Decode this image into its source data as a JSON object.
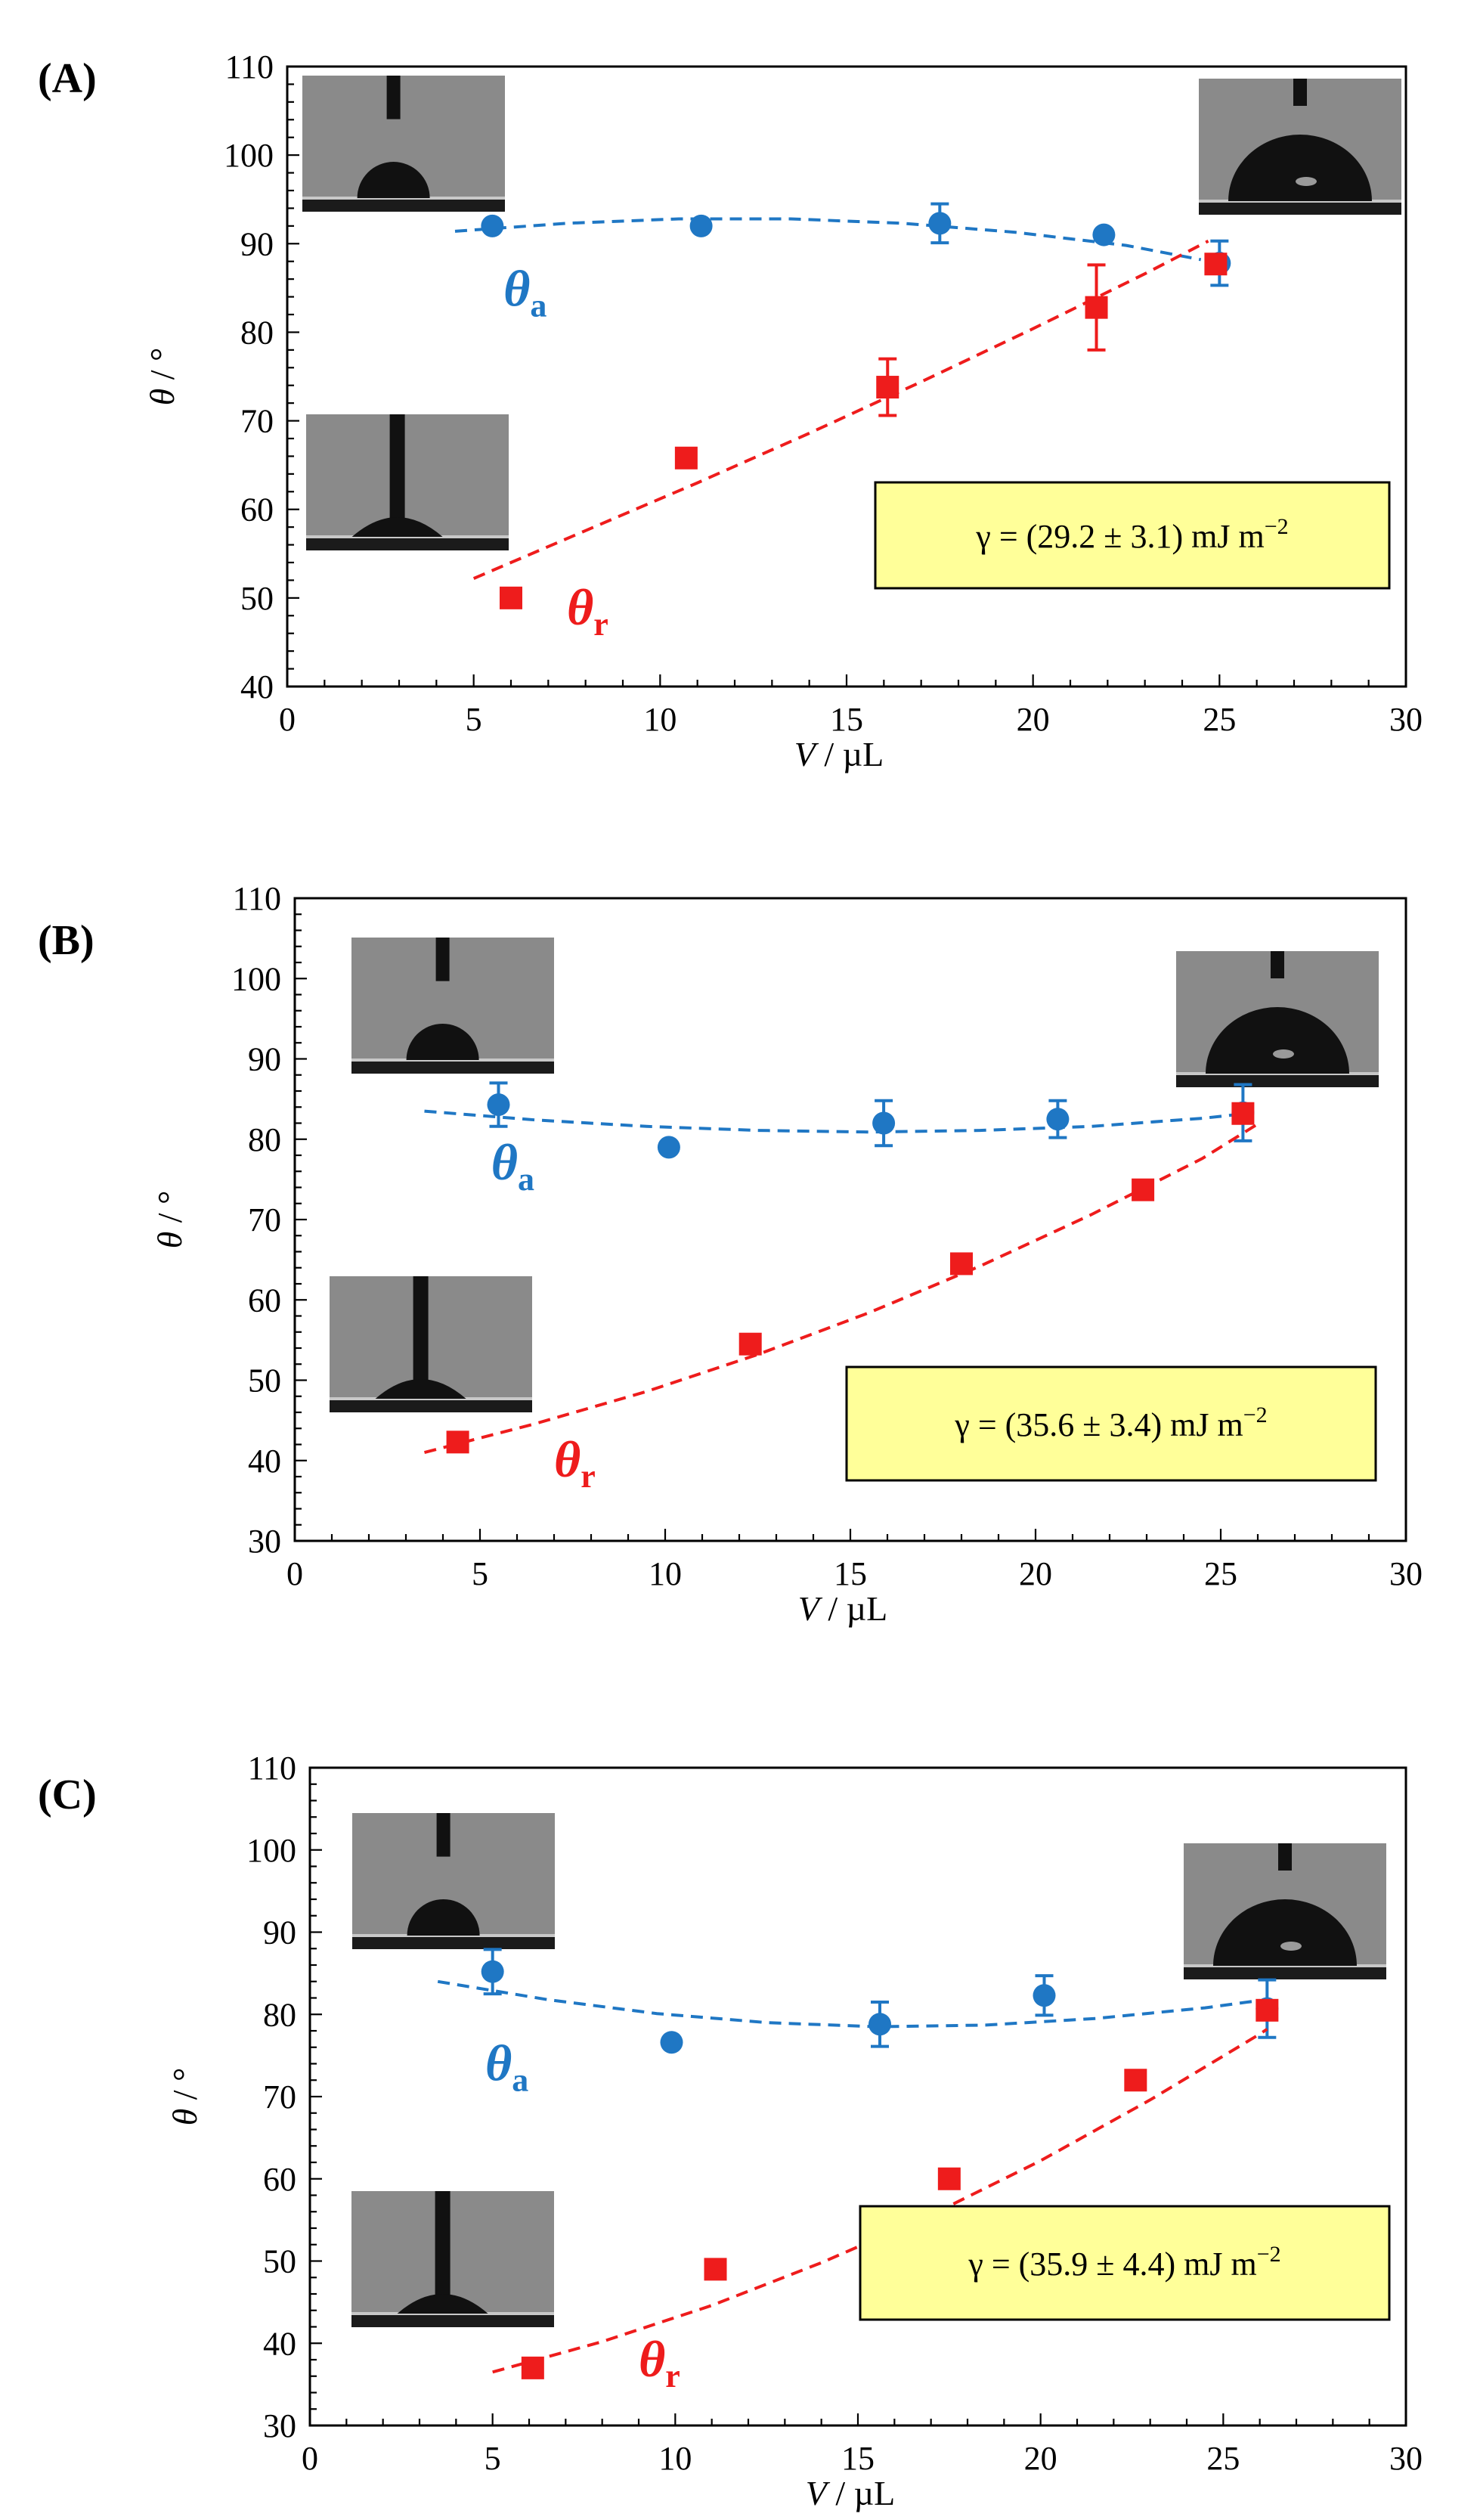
{
  "figure": {
    "colors": {
      "advancing": "#1f77c4",
      "receding": "#ee1c1c",
      "frame": "#000000",
      "annotation_fill": "#ffff99",
      "inset_gray": "#8a8a8a",
      "inset_dark": "#111111"
    }
  },
  "chart_data": [
    {
      "type": "scatter",
      "panel_label": "(A)",
      "xlabel_var": "V",
      "xlabel_unit": " / µL",
      "ylabel_var": "θ",
      "ylabel_unit": " / °",
      "xlim": [
        0,
        30
      ],
      "ylim": [
        40,
        110
      ],
      "xticks": [
        0,
        5,
        10,
        15,
        20,
        25,
        30
      ],
      "yticks": [
        40,
        50,
        60,
        70,
        80,
        90,
        100,
        110
      ],
      "annotation": {
        "prefix": "γ = (29.2 ± 3.1) mJ m",
        "sup": "−2"
      },
      "series": [
        {
          "name": "θa",
          "label_main": "θ",
          "label_sub": "a",
          "color": "advancing",
          "marker": "circle",
          "x": [
            5.5,
            11.1,
            17.5,
            21.9,
            25.0
          ],
          "y": [
            92,
            92,
            92.3,
            91,
            87.8
          ],
          "err": [
            0,
            0,
            2.2,
            0,
            2.5
          ],
          "fit": [
            [
              4.5,
              91.4
            ],
            [
              7.5,
              92.3
            ],
            [
              10.5,
              92.8
            ],
            [
              13.5,
              92.8
            ],
            [
              16.5,
              92.3
            ],
            [
              19.5,
              91.3
            ],
            [
              22.5,
              89.8
            ],
            [
              24.5,
              88.2
            ]
          ],
          "label_at": [
            5.8,
            83
          ]
        },
        {
          "name": "θr",
          "label_main": "θ",
          "label_sub": "r",
          "color": "receding",
          "marker": "square",
          "x": [
            6.0,
            10.7,
            16.1,
            21.7,
            24.9
          ],
          "y": [
            50,
            65.8,
            73.8,
            82.8,
            87.7
          ],
          "err": [
            0,
            0,
            3.2,
            4.8,
            0
          ],
          "fit": [
            [
              5.0,
              52.2
            ],
            [
              8.0,
              57.6
            ],
            [
              11.0,
              63.0
            ],
            [
              14.0,
              68.6
            ],
            [
              17.0,
              74.4
            ],
            [
              20.0,
              80.4
            ],
            [
              23.0,
              86.6
            ],
            [
              24.7,
              90.3
            ]
          ],
          "label_at": [
            7.5,
            47
          ]
        }
      ]
    },
    {
      "type": "scatter",
      "panel_label": "(B)",
      "xlabel_var": "V",
      "xlabel_unit": " / µL",
      "ylabel_var": "θ",
      "ylabel_unit": " / °",
      "xlim": [
        0,
        30
      ],
      "ylim": [
        30,
        110
      ],
      "xticks": [
        0,
        5,
        10,
        15,
        20,
        25,
        30
      ],
      "yticks": [
        30,
        40,
        50,
        60,
        70,
        80,
        90,
        100,
        110
      ],
      "annotation": {
        "prefix": "γ = (35.6 ± 3.4) mJ m",
        "sup": "−2"
      },
      "series": [
        {
          "name": "θa",
          "label_main": "θ",
          "label_sub": "a",
          "color": "advancing",
          "marker": "circle",
          "x": [
            5.5,
            10.1,
            15.9,
            20.6,
            25.6
          ],
          "y": [
            84.3,
            79,
            82,
            82.5,
            83.3
          ],
          "err": [
            2.7,
            0,
            2.8,
            2.3,
            3.5
          ],
          "fit": [
            [
              3.5,
              83.5
            ],
            [
              6.5,
              82.4
            ],
            [
              9.5,
              81.6
            ],
            [
              12.5,
              81.1
            ],
            [
              15.5,
              80.9
            ],
            [
              18.5,
              81.1
            ],
            [
              21.5,
              81.6
            ],
            [
              24.5,
              82.6
            ],
            [
              25.5,
              83.1
            ]
          ],
          "label_at": [
            5.3,
            75
          ]
        },
        {
          "name": "θr",
          "label_main": "θ",
          "label_sub": "r",
          "color": "receding",
          "marker": "square",
          "x": [
            4.4,
            12.3,
            18.0,
            22.9,
            25.6
          ],
          "y": [
            42.3,
            54.5,
            64.5,
            73.7,
            83.2
          ],
          "err": [
            0,
            0,
            0,
            0,
            0
          ],
          "fit": [
            [
              3.5,
              41.0
            ],
            [
              6.5,
              44.6
            ],
            [
              9.5,
              48.6
            ],
            [
              12.5,
              53.2
            ],
            [
              15.5,
              58.4
            ],
            [
              18.5,
              64.2
            ],
            [
              21.5,
              70.6
            ],
            [
              24.5,
              77.6
            ],
            [
              26.0,
              81.9
            ]
          ],
          "label_at": [
            7.0,
            38
          ]
        }
      ]
    },
    {
      "type": "scatter",
      "panel_label": "(C)",
      "xlabel_var": "V",
      "xlabel_unit": " / µL",
      "ylabel_var": "θ",
      "ylabel_unit": " / °",
      "xlim": [
        0,
        30
      ],
      "ylim": [
        30,
        110
      ],
      "xticks": [
        0,
        5,
        10,
        15,
        20,
        25,
        30
      ],
      "yticks": [
        30,
        40,
        50,
        60,
        70,
        80,
        90,
        100,
        110
      ],
      "annotation": {
        "prefix": "γ = (35.9 ± 4.4) mJ m",
        "sup": "−2"
      },
      "series": [
        {
          "name": "θa",
          "label_main": "θ",
          "label_sub": "a",
          "color": "advancing",
          "marker": "circle",
          "x": [
            5.0,
            9.9,
            15.6,
            20.1,
            26.2
          ],
          "y": [
            85.2,
            76.6,
            78.8,
            82.3,
            80.7
          ],
          "err": [
            2.7,
            0,
            2.7,
            2.4,
            3.5
          ],
          "fit": [
            [
              3.5,
              84.0
            ],
            [
              6.5,
              81.8
            ],
            [
              9.5,
              80.1
            ],
            [
              12.5,
              79.0
            ],
            [
              15.5,
              78.5
            ],
            [
              18.5,
              78.7
            ],
            [
              21.5,
              79.5
            ],
            [
              24.5,
              80.8
            ],
            [
              26.0,
              81.7
            ]
          ],
          "label_at": [
            4.8,
            72
          ]
        },
        {
          "name": "θr",
          "label_main": "θ",
          "label_sub": "r",
          "color": "receding",
          "marker": "square",
          "x": [
            6.1,
            11.1,
            17.5,
            22.6,
            26.2
          ],
          "y": [
            37,
            49,
            60,
            72,
            80.5
          ],
          "err": [
            0,
            0,
            0,
            0,
            0
          ],
          "fit": [
            [
              5.0,
              36.5
            ],
            [
              8.0,
              40.2
            ],
            [
              11.0,
              44.6
            ],
            [
              14.0,
              49.8
            ],
            [
              17.0,
              55.6
            ],
            [
              20.0,
              62.2
            ],
            [
              23.0,
              69.6
            ],
            [
              26.0,
              77.6
            ],
            [
              26.2,
              78.2
            ]
          ],
          "label_at": [
            9.0,
            36
          ]
        }
      ]
    }
  ]
}
